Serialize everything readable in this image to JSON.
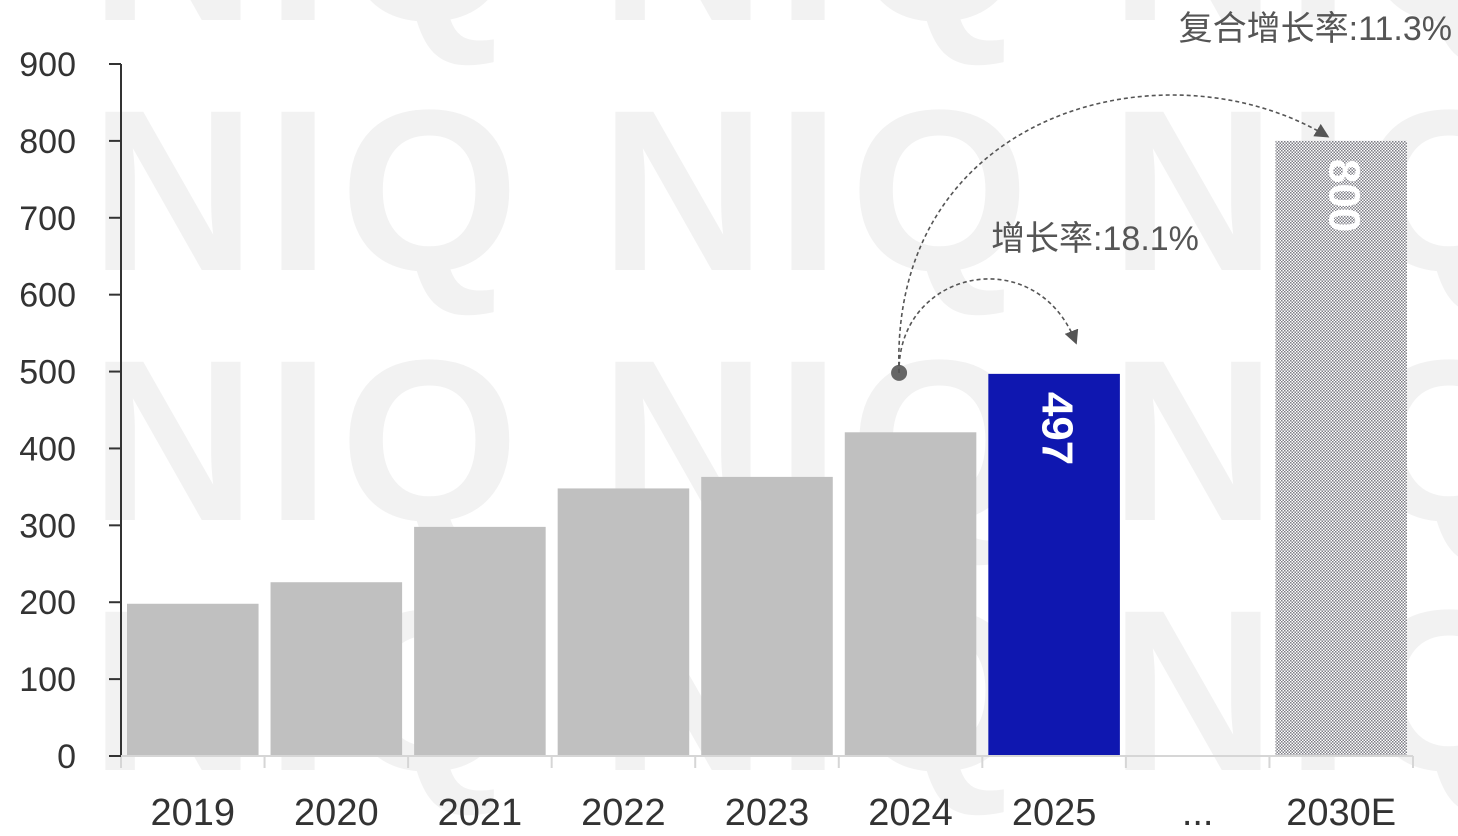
{
  "chart_data": {
    "type": "bar",
    "categories": [
      "2019",
      "2020",
      "2021",
      "2022",
      "2023",
      "2024",
      "2025",
      "...",
      "2030E"
    ],
    "values": [
      198,
      226,
      298,
      348,
      363,
      421,
      497,
      null,
      800
    ],
    "data_labels": {
      "2025": "497",
      "2030E": "800"
    },
    "title": "",
    "xlabel": "",
    "ylabel": "",
    "ylim": [
      0,
      900
    ],
    "yticks": [
      "0",
      "100",
      "200",
      "300",
      "400",
      "500",
      "600",
      "700",
      "800",
      "900"
    ],
    "grid": false,
    "legend": "none",
    "annotations": {
      "growth_rate": "增长率:18.1%",
      "cagr": "复合增长率:11.3%"
    },
    "watermark": "NIQ",
    "colors": {
      "historical": "#c0c0c0",
      "highlight": "#0f17b0",
      "forecast_pattern": "#8a8a92",
      "axis": "#333333",
      "text": "#333333",
      "annotation_text": "#555555",
      "arrow": "#555555"
    }
  }
}
